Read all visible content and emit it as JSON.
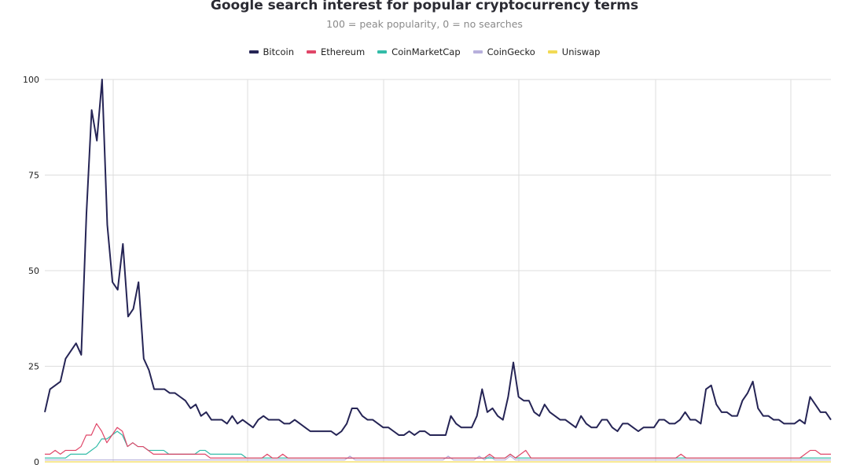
{
  "colors": {
    "Bitcoin": "#252455",
    "Ethereum": "#e04668",
    "CoinMarketCap": "#33bca8",
    "CoinGecko": "#b7b0dc",
    "Uniswap": "#f2da55",
    "grid": "#dddddd"
  },
  "chart_data": {
    "type": "line",
    "title": "Google search interest for popular cryptocurrency terms",
    "subtitle": "100 = peak popularity, 0 =  no searches",
    "legend_position": "top-center",
    "grid": true,
    "ylim": [
      0,
      100
    ],
    "yticks": [
      "0",
      "25",
      "50",
      "75",
      "100"
    ],
    "ytick_values": [
      0,
      25,
      50,
      75,
      100
    ],
    "series": [
      {
        "name": "Bitcoin",
        "values": [
          13,
          19,
          20,
          21,
          27,
          29,
          31,
          28,
          65,
          92,
          84,
          100,
          62,
          47,
          45,
          57,
          38,
          40,
          47,
          27,
          24,
          19,
          19,
          19,
          18,
          18,
          17,
          16,
          14,
          15,
          12,
          13,
          11,
          11,
          11,
          10,
          12,
          10,
          11,
          10,
          9,
          11,
          12,
          11,
          11,
          11,
          10,
          10,
          11,
          10,
          9,
          8,
          8,
          8,
          8,
          8,
          7,
          8,
          10,
          14,
          14,
          12,
          11,
          11,
          10,
          9,
          9,
          8,
          7,
          7,
          8,
          7,
          8,
          8,
          7,
          7,
          7,
          7,
          12,
          10,
          9,
          9,
          9,
          12,
          19,
          13,
          14,
          12,
          11,
          17,
          26,
          17,
          16,
          16,
          13,
          12,
          15,
          13,
          12,
          11,
          11,
          10,
          9,
          12,
          10,
          9,
          9,
          11,
          11,
          9,
          8,
          10,
          10,
          9,
          8,
          9,
          9,
          9,
          11,
          11,
          10,
          10,
          11,
          13,
          11,
          11,
          10,
          19,
          20,
          15,
          13,
          13,
          12,
          12,
          16,
          18,
          21,
          14,
          12,
          12,
          11,
          11,
          10,
          10,
          10,
          11,
          10,
          17,
          15,
          13,
          13,
          11
        ]
      },
      {
        "name": "Ethereum",
        "values": [
          2,
          2,
          3,
          2,
          3,
          3,
          3,
          4,
          7,
          7,
          10,
          8,
          5,
          7,
          9,
          8,
          4,
          5,
          4,
          4,
          3,
          2,
          2,
          2,
          2,
          2,
          2,
          2,
          2,
          2,
          2,
          2,
          1,
          1,
          1,
          1,
          1,
          1,
          1,
          1,
          1,
          1,
          1,
          2,
          1,
          1,
          2,
          1,
          1,
          1,
          1,
          1,
          1,
          1,
          1,
          1,
          1,
          1,
          1,
          1,
          1,
          1,
          1,
          1,
          1,
          1,
          1,
          1,
          1,
          1,
          1,
          1,
          1,
          1,
          1,
          1,
          1,
          1,
          1,
          1,
          1,
          1,
          1,
          1,
          1,
          1,
          2,
          1,
          1,
          1,
          2,
          1,
          2,
          3,
          1,
          1,
          1,
          1,
          1,
          1,
          1,
          1,
          1,
          1,
          1,
          1,
          1,
          1,
          1,
          1,
          1,
          1,
          1,
          1,
          1,
          1,
          1,
          1,
          1,
          1,
          1,
          1,
          1,
          2,
          1,
          1,
          1,
          1,
          1,
          1,
          1,
          1,
          1,
          1,
          1,
          1,
          1,
          1,
          1,
          1,
          1,
          1,
          1,
          1,
          1,
          1,
          1,
          2,
          3,
          3,
          2,
          2,
          2
        ]
      },
      {
        "name": "CoinMarketCap",
        "values": [
          1,
          1,
          1,
          1,
          1,
          2,
          2,
          2,
          2,
          3,
          4,
          6,
          6,
          7,
          8,
          7,
          4,
          5,
          4,
          4,
          3,
          3,
          3,
          3,
          2,
          2,
          2,
          2,
          2,
          2,
          3,
          3,
          2,
          2,
          2,
          2,
          2,
          2,
          2,
          1,
          1,
          1,
          1,
          1,
          1,
          1,
          1,
          1,
          1,
          1,
          1,
          1,
          1,
          1,
          1,
          1,
          1,
          1,
          1,
          1,
          1,
          1,
          1,
          1,
          1,
          1,
          1,
          1,
          1,
          1,
          1,
          1,
          1,
          1,
          1,
          1,
          1,
          1,
          1,
          1,
          1,
          1,
          1,
          1,
          1,
          1,
          1,
          1,
          1,
          1,
          2,
          1,
          1,
          1,
          1,
          1,
          1,
          1,
          1,
          1,
          1,
          1,
          1,
          1,
          1,
          1,
          1,
          1,
          1,
          1,
          1,
          1,
          1,
          1,
          1,
          1,
          1,
          1,
          1,
          1,
          1,
          1,
          1,
          1,
          1,
          1,
          1,
          1,
          1,
          1,
          1,
          1,
          1,
          1,
          1,
          1,
          1,
          1,
          1,
          1,
          1,
          1,
          1,
          1,
          1,
          1,
          1,
          1,
          1,
          1,
          1,
          1,
          1
        ]
      },
      {
        "name": "CoinGecko",
        "values": [
          0.5,
          0.5,
          0.5,
          0.5,
          0.5,
          0.5,
          0.5,
          0.5,
          0.5,
          0.5,
          0.5,
          0.5,
          0.5,
          0.5,
          0.5,
          0.5,
          0.5,
          0.5,
          0.5,
          0.5,
          0.5,
          0.5,
          0.5,
          0.5,
          0.5,
          0.5,
          0.5,
          0.5,
          0.5,
          0.5,
          0.5,
          0.5,
          0.5,
          0.5,
          0.5,
          0.5,
          0.5,
          0.5,
          0.5,
          0.5,
          0.5,
          0.5,
          0.5,
          0.5,
          0.5,
          0.5,
          0.5,
          0.5,
          0.5,
          0.5,
          0.5,
          0.5,
          0.5,
          0.5,
          0.5,
          0.5,
          0.5,
          0.5,
          0.5,
          1.5,
          0.5,
          0.5,
          0.5,
          0.5,
          0.5,
          0.5,
          0.5,
          0.5,
          0.5,
          0.5,
          0.5,
          0.5,
          0.5,
          0.5,
          0.5,
          0.5,
          0.5,
          0.5,
          1.5,
          0.5,
          0.5,
          0.5,
          0.5,
          0.5,
          1.5,
          0.5,
          1.5,
          0.5,
          0.5,
          0.5,
          1.5,
          0.5,
          0.5,
          0.5,
          0.5,
          0.5,
          0.5,
          0.5,
          0.5,
          0.5,
          0.5,
          0.5,
          0.5,
          0.5,
          0.5,
          0.5,
          0.5,
          0.5,
          0.5,
          0.5,
          0.5,
          0.5,
          0.5,
          0.5,
          0.5,
          0.5,
          0.5,
          0.5,
          0.5,
          0.5,
          0.5,
          0.5,
          0.5,
          0.5,
          0.5,
          0.5,
          0.5,
          0.5,
          0.5,
          0.5,
          0.5,
          0.5,
          0.5,
          0.5,
          0.5,
          0.5,
          0.5,
          0.5,
          0.5,
          0.5,
          0.5,
          0.5,
          0.5,
          0.5,
          0.5,
          0.5,
          0.5,
          0.5,
          0.5,
          0.5,
          0.5,
          0.5,
          0.5
        ]
      },
      {
        "name": "Uniswap",
        "values": [
          0,
          0,
          0,
          0,
          0,
          0,
          0,
          0,
          0,
          0,
          0,
          0,
          0,
          0,
          0,
          0,
          0,
          0,
          0,
          0,
          0,
          0,
          0,
          0,
          0,
          0,
          0,
          0,
          0,
          0,
          0,
          0,
          0,
          0,
          0,
          0,
          0,
          0,
          0,
          0,
          0,
          0,
          0,
          0,
          0,
          0,
          0,
          0,
          0,
          0,
          0,
          0,
          0,
          0,
          0,
          0,
          0,
          0,
          0,
          0,
          0,
          0,
          0,
          0,
          0,
          0,
          0,
          0,
          0,
          0,
          0,
          0,
          0,
          0,
          0,
          0,
          0,
          0,
          0,
          0,
          0,
          0,
          0,
          0,
          0,
          0,
          0,
          0,
          0,
          0,
          0,
          0,
          0,
          0,
          0,
          0,
          0,
          0,
          0,
          0,
          0,
          0,
          0,
          0,
          0,
          0,
          0,
          0,
          0,
          0,
          0,
          0,
          0,
          0,
          0,
          0,
          0,
          0,
          0,
          0,
          0,
          0,
          0,
          0,
          0,
          0,
          0,
          0,
          0,
          0,
          0,
          0,
          0,
          0,
          0,
          0,
          0,
          0,
          0,
          0,
          0,
          0,
          0,
          0,
          0,
          0,
          0,
          0,
          0,
          0,
          0,
          0,
          0
        ]
      }
    ]
  }
}
